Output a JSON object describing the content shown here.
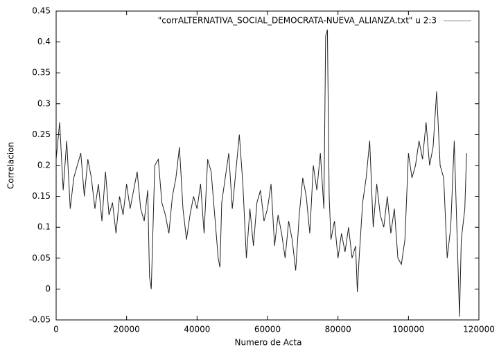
{
  "chart_data": {
    "type": "line",
    "x_label": "Numero de Acta",
    "y_label": "Correlacion",
    "xlim": [
      0,
      120000
    ],
    "xticks": [
      0,
      20000,
      40000,
      60000,
      80000,
      100000,
      120000
    ],
    "ylim": [
      -0.05,
      0.45
    ],
    "yticks": [
      -0.05,
      0,
      0.05,
      0.1,
      0.15,
      0.2,
      0.25,
      0.3,
      0.35,
      0.4,
      0.45
    ],
    "legend_position": "top-right",
    "x": [
      0,
      1000,
      2000,
      3000,
      4000,
      5000,
      6000,
      7000,
      8000,
      9000,
      10000,
      11000,
      12000,
      13000,
      14000,
      15000,
      16000,
      17000,
      18000,
      19000,
      20000,
      21000,
      22000,
      23000,
      24000,
      25000,
      26000,
      26500,
      27000,
      27500,
      28000,
      29000,
      30000,
      31000,
      32000,
      33000,
      34000,
      35000,
      36000,
      37000,
      38000,
      39000,
      40000,
      41000,
      42000,
      43000,
      44000,
      45000,
      46000,
      46500,
      47000,
      48000,
      49000,
      50000,
      51000,
      52000,
      53000,
      54000,
      55000,
      56000,
      57000,
      58000,
      59000,
      60000,
      61000,
      62000,
      63000,
      64000,
      65000,
      66000,
      67000,
      68000,
      69000,
      70000,
      71000,
      72000,
      73000,
      74000,
      75000,
      76000,
      76500,
      77000,
      77500,
      78000,
      79000,
      80000,
      81000,
      82000,
      83000,
      84000,
      85000,
      85500,
      86000,
      87000,
      88000,
      89000,
      90000,
      91000,
      92000,
      93000,
      94000,
      95000,
      96000,
      97000,
      98000,
      99000,
      100000,
      101000,
      102000,
      103000,
      104000,
      105000,
      106000,
      107000,
      108000,
      109000,
      110000,
      111000,
      112000,
      113000,
      114000,
      114500,
      115000,
      116000,
      116500
    ],
    "series": [
      {
        "name": "\"corrALTERNATIVA_SOCIAL_DEMOCRATA-NUEVA_ALIANZA.txt\" u 2:3",
        "color": "#222222",
        "values": [
          0.21,
          0.27,
          0.16,
          0.24,
          0.13,
          0.18,
          0.2,
          0.22,
          0.15,
          0.21,
          0.18,
          0.13,
          0.17,
          0.11,
          0.19,
          0.12,
          0.14,
          0.09,
          0.15,
          0.12,
          0.17,
          0.13,
          0.16,
          0.19,
          0.13,
          0.11,
          0.16,
          0.02,
          0.0,
          0.1,
          0.2,
          0.21,
          0.14,
          0.12,
          0.09,
          0.15,
          0.18,
          0.23,
          0.13,
          0.08,
          0.12,
          0.15,
          0.13,
          0.17,
          0.09,
          0.21,
          0.19,
          0.12,
          0.05,
          0.035,
          0.14,
          0.18,
          0.22,
          0.13,
          0.19,
          0.25,
          0.17,
          0.05,
          0.13,
          0.07,
          0.14,
          0.16,
          0.11,
          0.13,
          0.17,
          0.07,
          0.12,
          0.09,
          0.05,
          0.11,
          0.08,
          0.03,
          0.12,
          0.18,
          0.15,
          0.09,
          0.2,
          0.16,
          0.22,
          0.13,
          0.41,
          0.42,
          0.15,
          0.08,
          0.11,
          0.05,
          0.09,
          0.06,
          0.1,
          0.05,
          0.07,
          -0.005,
          0.05,
          0.14,
          0.18,
          0.24,
          0.1,
          0.17,
          0.12,
          0.1,
          0.15,
          0.09,
          0.13,
          0.05,
          0.04,
          0.08,
          0.22,
          0.18,
          0.2,
          0.24,
          0.21,
          0.27,
          0.2,
          0.23,
          0.32,
          0.2,
          0.18,
          0.05,
          0.1,
          0.24,
          0.05,
          -0.045,
          0.08,
          0.13,
          0.22
        ]
      }
    ]
  }
}
